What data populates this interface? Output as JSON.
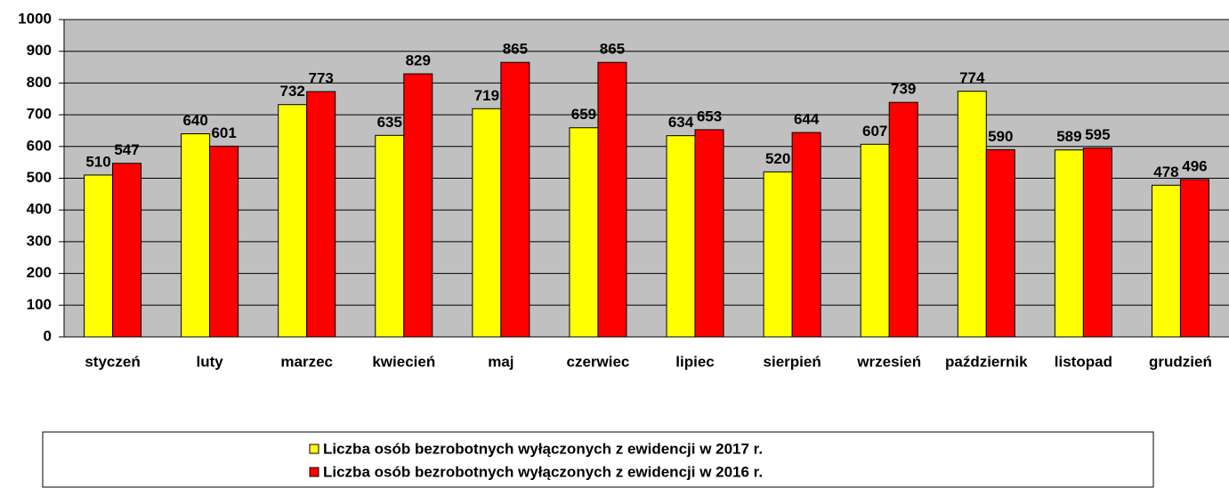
{
  "chart_data": {
    "type": "bar",
    "categories": [
      "styczeń",
      "luty",
      "marzec",
      "kwiecień",
      "maj",
      "czerwiec",
      "lipiec",
      "sierpień",
      "wrzesień",
      "październik",
      "listopad",
      "grudzień"
    ],
    "series": [
      {
        "name": "Liczba osób bezrobotnych wyłączonych z ewidencji w 2017 r.",
        "color": "#ffff00",
        "values": [
          510,
          640,
          732,
          635,
          719,
          659,
          634,
          520,
          607,
          774,
          589,
          478
        ]
      },
      {
        "name": "Liczba osób bezrobotnych wyłączonych z ewidencji w 2016 r.",
        "color": "#ff0000",
        "values": [
          547,
          601,
          773,
          829,
          865,
          865,
          653,
          644,
          739,
          590,
          595,
          496
        ]
      }
    ],
    "ylim": [
      0,
      1000
    ],
    "yticks": [
      0,
      100,
      200,
      300,
      400,
      500,
      600,
      700,
      800,
      900,
      1000
    ],
    "grid": true,
    "plot_background": "#c0c0c0",
    "legend": "bottom"
  }
}
